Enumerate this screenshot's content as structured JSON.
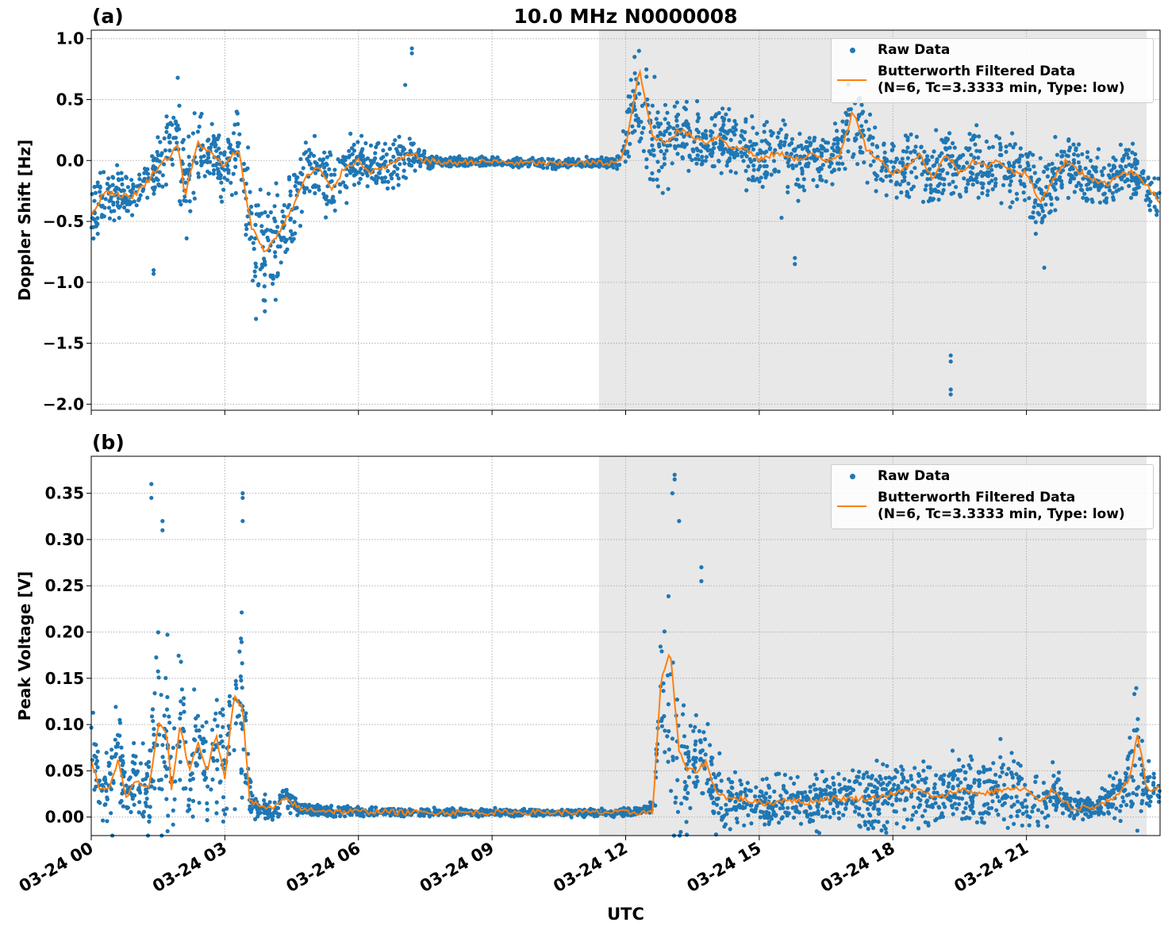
{
  "figure_title": "10.0 MHz N0000008",
  "xlabel": "UTC",
  "x_tick_labels": [
    "03-24 00",
    "03-24 03",
    "03-24 06",
    "03-24 09",
    "03-24 12",
    "03-24 15",
    "03-24 18",
    "03-24 21"
  ],
  "colors": {
    "raw": "#1f77b4",
    "filtered": "#ff7f0e",
    "night_shade": "#e8e8e8",
    "grid": "#b0b0b0"
  },
  "legend": {
    "raw_label": "Raw Data",
    "filtered_label_line1": "Butterworth Filtered Data",
    "filtered_label_line2": "(N=6, Tc=3.3333 min, Type: low)"
  },
  "chart_data": [
    {
      "type": "scatter",
      "panel_label": "(a)",
      "ylabel": "Doppler Shift [Hz]",
      "x_unit": "hours UTC on 03-24",
      "xlim": [
        0,
        24
      ],
      "ylim": [
        -2.05,
        1.07
      ],
      "y_ticks": [
        1.0,
        0.5,
        0.0,
        -0.5,
        -1.0,
        -1.5,
        -2.0
      ],
      "y_tick_labels": [
        "1.0",
        "0.5",
        "0.0",
        "−0.5",
        "−1.0",
        "−1.5",
        "−2.0"
      ],
      "grid": true,
      "shaded_interval_hours": [
        11.4,
        23.7
      ],
      "legend_position": "top-right",
      "series": [
        {
          "name": "Raw Data",
          "kind": "scatter",
          "x": [
            0,
            0.3,
            0.6,
            0.9,
            1.2,
            1.5,
            1.8,
            1.95,
            2.1,
            2.4,
            2.7,
            3.0,
            3.3,
            3.6,
            3.9,
            4.2,
            4.5,
            4.8,
            5.1,
            5.4,
            5.7,
            6.0,
            6.3,
            6.6,
            6.9,
            7.2,
            7.5,
            8.0,
            8.5,
            9.0,
            9.5,
            10.0,
            10.5,
            11.0,
            11.5,
            11.9,
            12.1,
            12.3,
            12.6,
            12.9,
            13.2,
            13.5,
            13.8,
            14.1,
            14.4,
            14.7,
            15.0,
            15.3,
            15.6,
            15.9,
            16.2,
            16.5,
            16.8,
            17.1,
            17.4,
            17.7,
            18.0,
            18.3,
            18.6,
            18.9,
            19.2,
            19.5,
            19.8,
            20.1,
            20.4,
            20.7,
            21.0,
            21.3,
            21.6,
            21.9,
            22.2,
            22.5,
            22.8,
            23.1,
            23.4,
            23.7,
            24.0
          ],
          "y": [
            -0.45,
            -0.25,
            -0.28,
            -0.3,
            -0.2,
            -0.05,
            0.1,
            0.25,
            -0.3,
            0.15,
            0.05,
            -0.05,
            0.1,
            -0.55,
            -0.85,
            -0.6,
            -0.4,
            -0.15,
            -0.05,
            -0.25,
            -0.05,
            0.0,
            -0.1,
            -0.05,
            0.0,
            0.05,
            0.0,
            -0.02,
            -0.01,
            -0.01,
            -0.02,
            -0.02,
            -0.03,
            -0.02,
            -0.02,
            -0.01,
            0.35,
            0.4,
            0.2,
            0.15,
            0.25,
            0.2,
            0.15,
            0.2,
            0.1,
            0.1,
            0.0,
            0.05,
            0.05,
            0.0,
            0.05,
            0.0,
            0.05,
            0.4,
            0.1,
            0.0,
            -0.1,
            -0.05,
            0.05,
            -0.15,
            0.05,
            -0.1,
            0.0,
            -0.05,
            0.0,
            -0.1,
            -0.1,
            -0.35,
            -0.15,
            0.0,
            -0.1,
            -0.15,
            -0.2,
            -0.1,
            -0.1,
            -0.2,
            -0.35
          ],
          "spread": [
            0.2,
            0.2,
            0.15,
            0.15,
            0.15,
            0.2,
            0.3,
            0.3,
            0.35,
            0.2,
            0.2,
            0.2,
            0.25,
            0.4,
            0.35,
            0.35,
            0.3,
            0.25,
            0.2,
            0.2,
            0.2,
            0.15,
            0.15,
            0.15,
            0.15,
            0.1,
            0.05,
            0.03,
            0.03,
            0.03,
            0.03,
            0.03,
            0.03,
            0.03,
            0.03,
            0.05,
            0.3,
            0.25,
            0.3,
            0.25,
            0.2,
            0.2,
            0.2,
            0.2,
            0.2,
            0.2,
            0.2,
            0.2,
            0.2,
            0.2,
            0.2,
            0.2,
            0.2,
            0.25,
            0.2,
            0.2,
            0.2,
            0.2,
            0.2,
            0.25,
            0.2,
            0.2,
            0.2,
            0.2,
            0.2,
            0.2,
            0.2,
            0.25,
            0.2,
            0.2,
            0.2,
            0.2,
            0.2,
            0.15,
            0.15,
            0.15,
            0.15
          ],
          "outliers": [
            [
              7.2,
              0.92
            ],
            [
              7.2,
              0.88
            ],
            [
              7.05,
              0.62
            ],
            [
              12.3,
              0.9
            ],
            [
              12.2,
              0.85
            ],
            [
              19.3,
              -1.6
            ],
            [
              19.3,
              -1.65
            ],
            [
              19.3,
              -1.88
            ],
            [
              19.3,
              -1.92
            ],
            [
              15.8,
              -0.8
            ],
            [
              15.8,
              -0.85
            ],
            [
              15.5,
              -0.47
            ],
            [
              21.4,
              -0.88
            ],
            [
              1.4,
              -0.9
            ],
            [
              1.4,
              -0.93
            ],
            [
              3.7,
              -1.3
            ],
            [
              3.9,
              -1.15
            ]
          ]
        },
        {
          "name": "Butterworth Filtered Data (N=6, Tc=3.3333 min, Type: low)",
          "kind": "line",
          "x": [
            0,
            0.3,
            0.6,
            0.9,
            1.2,
            1.5,
            1.8,
            1.95,
            2.1,
            2.4,
            2.7,
            3.0,
            3.3,
            3.6,
            3.9,
            4.2,
            4.5,
            4.8,
            5.1,
            5.4,
            5.7,
            6.0,
            6.3,
            6.6,
            6.9,
            7.2,
            7.5,
            8.0,
            8.5,
            9.0,
            9.5,
            10.0,
            10.5,
            11.0,
            11.5,
            11.9,
            12.1,
            12.3,
            12.6,
            12.9,
            13.2,
            13.5,
            13.8,
            14.1,
            14.4,
            14.7,
            15.0,
            15.3,
            15.6,
            15.9,
            16.2,
            16.5,
            16.8,
            17.1,
            17.4,
            17.7,
            18.0,
            18.3,
            18.6,
            18.9,
            19.2,
            19.5,
            19.8,
            20.1,
            20.4,
            20.7,
            21.0,
            21.3,
            21.6,
            21.9,
            22.2,
            22.5,
            22.8,
            23.1,
            23.4,
            23.7,
            24.0
          ],
          "y": [
            -0.45,
            -0.25,
            -0.28,
            -0.3,
            -0.2,
            -0.05,
            0.05,
            0.15,
            -0.3,
            0.15,
            0.05,
            -0.05,
            0.1,
            -0.55,
            -0.75,
            -0.6,
            -0.4,
            -0.15,
            -0.05,
            -0.25,
            -0.05,
            0.0,
            -0.1,
            -0.05,
            0.0,
            0.05,
            0.0,
            -0.02,
            -0.01,
            -0.01,
            -0.02,
            -0.02,
            -0.03,
            -0.02,
            -0.02,
            -0.01,
            0.3,
            0.75,
            0.2,
            0.15,
            0.25,
            0.2,
            0.15,
            0.2,
            0.1,
            0.1,
            0.0,
            0.05,
            0.05,
            0.0,
            0.05,
            0.0,
            0.05,
            0.4,
            0.1,
            0.0,
            -0.1,
            -0.05,
            0.05,
            -0.15,
            0.05,
            -0.1,
            0.0,
            -0.05,
            0.0,
            -0.1,
            -0.1,
            -0.35,
            -0.15,
            0.0,
            -0.1,
            -0.15,
            -0.2,
            -0.1,
            -0.1,
            -0.2,
            -0.35
          ]
        }
      ]
    },
    {
      "type": "scatter",
      "panel_label": "(b)",
      "ylabel": "Peak Voltage [V]",
      "x_unit": "hours UTC on 03-24",
      "xlim": [
        0,
        24
      ],
      "ylim": [
        -0.02,
        0.39
      ],
      "y_ticks": [
        0.35,
        0.3,
        0.25,
        0.2,
        0.15,
        0.1,
        0.05,
        0.0
      ],
      "y_tick_labels": [
        "0.35",
        "0.30",
        "0.25",
        "0.20",
        "0.15",
        "0.10",
        "0.05",
        "0.00"
      ],
      "grid": true,
      "shaded_interval_hours": [
        11.4,
        23.7
      ],
      "legend_position": "top-right",
      "series": [
        {
          "name": "Raw Data",
          "kind": "scatter",
          "x": [
            0,
            0.2,
            0.4,
            0.6,
            0.8,
            1.0,
            1.3,
            1.5,
            1.7,
            1.8,
            2.0,
            2.2,
            2.4,
            2.6,
            2.8,
            3.0,
            3.2,
            3.4,
            3.55,
            3.8,
            4.1,
            4.4,
            4.7,
            5.0,
            5.5,
            6.0,
            6.5,
            7.0,
            7.5,
            8.0,
            9.0,
            10.0,
            11.0,
            12.0,
            12.2,
            12.6,
            12.8,
            13.0,
            13.2,
            13.4,
            13.6,
            13.8,
            14.0,
            14.3,
            14.6,
            15.0,
            15.3,
            15.6,
            16.0,
            16.5,
            17.0,
            17.5,
            18.0,
            18.5,
            19.0,
            19.5,
            20.0,
            20.5,
            21.0,
            21.3,
            21.6,
            22.0,
            22.5,
            23.0,
            23.3,
            23.5,
            23.7,
            24.0
          ],
          "y": [
            0.08,
            0.03,
            0.03,
            0.07,
            0.02,
            0.04,
            0.03,
            0.1,
            0.11,
            0.03,
            0.1,
            0.05,
            0.08,
            0.05,
            0.09,
            0.04,
            0.13,
            0.12,
            0.02,
            0.01,
            0.01,
            0.02,
            0.008,
            0.008,
            0.006,
            0.006,
            0.006,
            0.005,
            0.005,
            0.005,
            0.005,
            0.005,
            0.005,
            0.005,
            0.005,
            0.01,
            0.13,
            0.1,
            0.07,
            0.05,
            0.05,
            0.06,
            0.03,
            0.02,
            0.02,
            0.015,
            0.015,
            0.02,
            0.015,
            0.02,
            0.02,
            0.02,
            0.025,
            0.03,
            0.02,
            0.03,
            0.025,
            0.03,
            0.03,
            0.015,
            0.03,
            0.01,
            0.01,
            0.02,
            0.04,
            0.07,
            0.03,
            0.03
          ],
          "spread": [
            0.05,
            0.02,
            0.03,
            0.05,
            0.01,
            0.03,
            0.04,
            0.08,
            0.08,
            0.04,
            0.07,
            0.05,
            0.05,
            0.05,
            0.06,
            0.04,
            0.08,
            0.08,
            0.02,
            0.01,
            0.01,
            0.01,
            0.005,
            0.005,
            0.004,
            0.004,
            0.004,
            0.003,
            0.003,
            0.003,
            0.003,
            0.003,
            0.003,
            0.003,
            0.003,
            0.005,
            0.08,
            0.1,
            0.08,
            0.05,
            0.04,
            0.04,
            0.03,
            0.02,
            0.02,
            0.02,
            0.02,
            0.02,
            0.02,
            0.02,
            0.02,
            0.03,
            0.03,
            0.03,
            0.02,
            0.03,
            0.03,
            0.03,
            0.03,
            0.02,
            0.02,
            0.01,
            0.01,
            0.02,
            0.03,
            0.06,
            0.02,
            0.02
          ],
          "outliers": [
            [
              1.35,
              0.36
            ],
            [
              1.35,
              0.345
            ],
            [
              1.6,
              0.32
            ],
            [
              1.6,
              0.31
            ],
            [
              3.4,
              0.35
            ],
            [
              3.4,
              0.345
            ],
            [
              3.4,
              0.32
            ],
            [
              13.1,
              0.37
            ],
            [
              13.1,
              0.365
            ],
            [
              13.05,
              0.35
            ],
            [
              13.2,
              0.32
            ],
            [
              13.7,
              0.27
            ],
            [
              13.7,
              0.255
            ]
          ]
        },
        {
          "name": "Butterworth Filtered Data (N=6, Tc=3.3333 min, Type: low)",
          "kind": "line",
          "x": [
            0,
            0.2,
            0.4,
            0.6,
            0.8,
            1.0,
            1.3,
            1.5,
            1.7,
            1.8,
            2.0,
            2.2,
            2.4,
            2.6,
            2.8,
            3.0,
            3.2,
            3.4,
            3.55,
            3.8,
            4.1,
            4.4,
            4.7,
            5.0,
            5.5,
            6.0,
            6.5,
            7.0,
            7.5,
            8.0,
            9.0,
            10.0,
            11.0,
            12.0,
            12.2,
            12.6,
            12.8,
            13.0,
            13.2,
            13.4,
            13.6,
            13.8,
            14.0,
            14.3,
            14.6,
            15.0,
            15.3,
            15.6,
            16.0,
            16.5,
            17.0,
            17.5,
            18.0,
            18.5,
            19.0,
            19.5,
            20.0,
            20.5,
            21.0,
            21.3,
            21.6,
            22.0,
            22.5,
            23.0,
            23.3,
            23.5,
            23.7,
            24.0
          ],
          "y": [
            0.06,
            0.03,
            0.03,
            0.06,
            0.02,
            0.04,
            0.03,
            0.1,
            0.09,
            0.03,
            0.1,
            0.05,
            0.08,
            0.05,
            0.09,
            0.04,
            0.13,
            0.12,
            0.02,
            0.01,
            0.01,
            0.02,
            0.008,
            0.008,
            0.006,
            0.006,
            0.006,
            0.005,
            0.005,
            0.005,
            0.005,
            0.005,
            0.005,
            0.005,
            0.005,
            0.005,
            0.15,
            0.18,
            0.07,
            0.05,
            0.05,
            0.06,
            0.03,
            0.02,
            0.02,
            0.015,
            0.015,
            0.02,
            0.015,
            0.02,
            0.02,
            0.02,
            0.025,
            0.03,
            0.02,
            0.03,
            0.025,
            0.03,
            0.03,
            0.015,
            0.03,
            0.01,
            0.01,
            0.02,
            0.04,
            0.09,
            0.03,
            0.03
          ]
        }
      ]
    }
  ]
}
